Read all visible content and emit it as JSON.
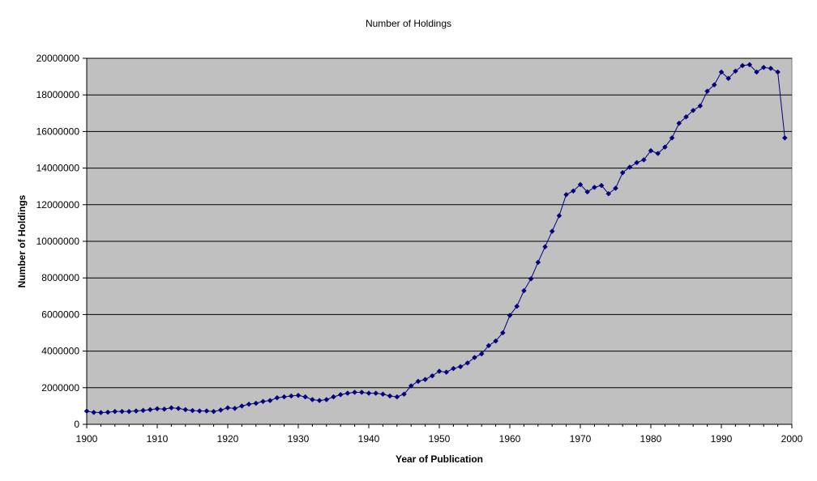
{
  "colors": {
    "plot_background": "#c0c0c0",
    "series": "#000080",
    "gridline": "#000000"
  },
  "chart_data": {
    "type": "line",
    "title": "Number of Holdings",
    "xlabel": "Year of Publication",
    "ylabel": "Number of Holdings",
    "xlim": [
      1900,
      2000
    ],
    "ylim": [
      0,
      20000000
    ],
    "xticks": [
      "1900",
      "1910",
      "1920",
      "1930",
      "1940",
      "1950",
      "1960",
      "1970",
      "1980",
      "1990",
      "2000"
    ],
    "yticks": [
      "0",
      "2000000",
      "4000000",
      "6000000",
      "8000000",
      "10000000",
      "12000000",
      "14000000",
      "16000000",
      "18000000",
      "20000000"
    ],
    "grid": "horizontal",
    "legend": "none",
    "marker": "diamond",
    "series": [
      {
        "x": [
          1900,
          1901,
          1902,
          1903,
          1904,
          1905,
          1906,
          1907,
          1908,
          1909,
          1910,
          1911,
          1912,
          1913,
          1914,
          1915,
          1916,
          1917,
          1918,
          1919,
          1920,
          1921,
          1922,
          1923,
          1924,
          1925,
          1926,
          1927,
          1928,
          1929,
          1930,
          1931,
          1932,
          1933,
          1934,
          1935,
          1936,
          1937,
          1938,
          1939,
          1940,
          1941,
          1942,
          1943,
          1944,
          1945,
          1946,
          1947,
          1948,
          1949,
          1950,
          1951,
          1952,
          1953,
          1954,
          1955,
          1956,
          1957,
          1958,
          1959,
          1960,
          1961,
          1962,
          1963,
          1964,
          1965,
          1966,
          1967,
          1968,
          1969,
          1970,
          1971,
          1972,
          1973,
          1974,
          1975,
          1976,
          1977,
          1978,
          1979,
          1980,
          1981,
          1982,
          1983,
          1984,
          1985,
          1986,
          1987,
          1988,
          1989,
          1990,
          1991,
          1992,
          1993,
          1994,
          1995,
          1996,
          1997,
          1998,
          1999
        ],
        "values": [
          720000,
          650000,
          640000,
          660000,
          700000,
          700000,
          700000,
          730000,
          760000,
          800000,
          850000,
          830000,
          900000,
          870000,
          800000,
          750000,
          730000,
          730000,
          700000,
          780000,
          900000,
          870000,
          1000000,
          1100000,
          1150000,
          1250000,
          1300000,
          1450000,
          1500000,
          1550000,
          1580000,
          1500000,
          1350000,
          1300000,
          1350000,
          1500000,
          1620000,
          1700000,
          1750000,
          1750000,
          1700000,
          1700000,
          1650000,
          1550000,
          1500000,
          1650000,
          2100000,
          2350000,
          2450000,
          2650000,
          2900000,
          2850000,
          3050000,
          3150000,
          3350000,
          3650000,
          3850000,
          4300000,
          4550000,
          5000000,
          5950000,
          6450000,
          7300000,
          7950000,
          8850000,
          9700000,
          10550000,
          11400000,
          12550000,
          12750000,
          13100000,
          12700000,
          12950000,
          13050000,
          12600000,
          12900000,
          13750000,
          14050000,
          14300000,
          14450000,
          14950000,
          14800000,
          15150000,
          15650000,
          16450000,
          16800000,
          17150000,
          17400000,
          18200000,
          18550000,
          19250000,
          18900000,
          19300000,
          19600000,
          19650000,
          19250000,
          19500000,
          19450000,
          19250000,
          15650000
        ]
      }
    ]
  }
}
